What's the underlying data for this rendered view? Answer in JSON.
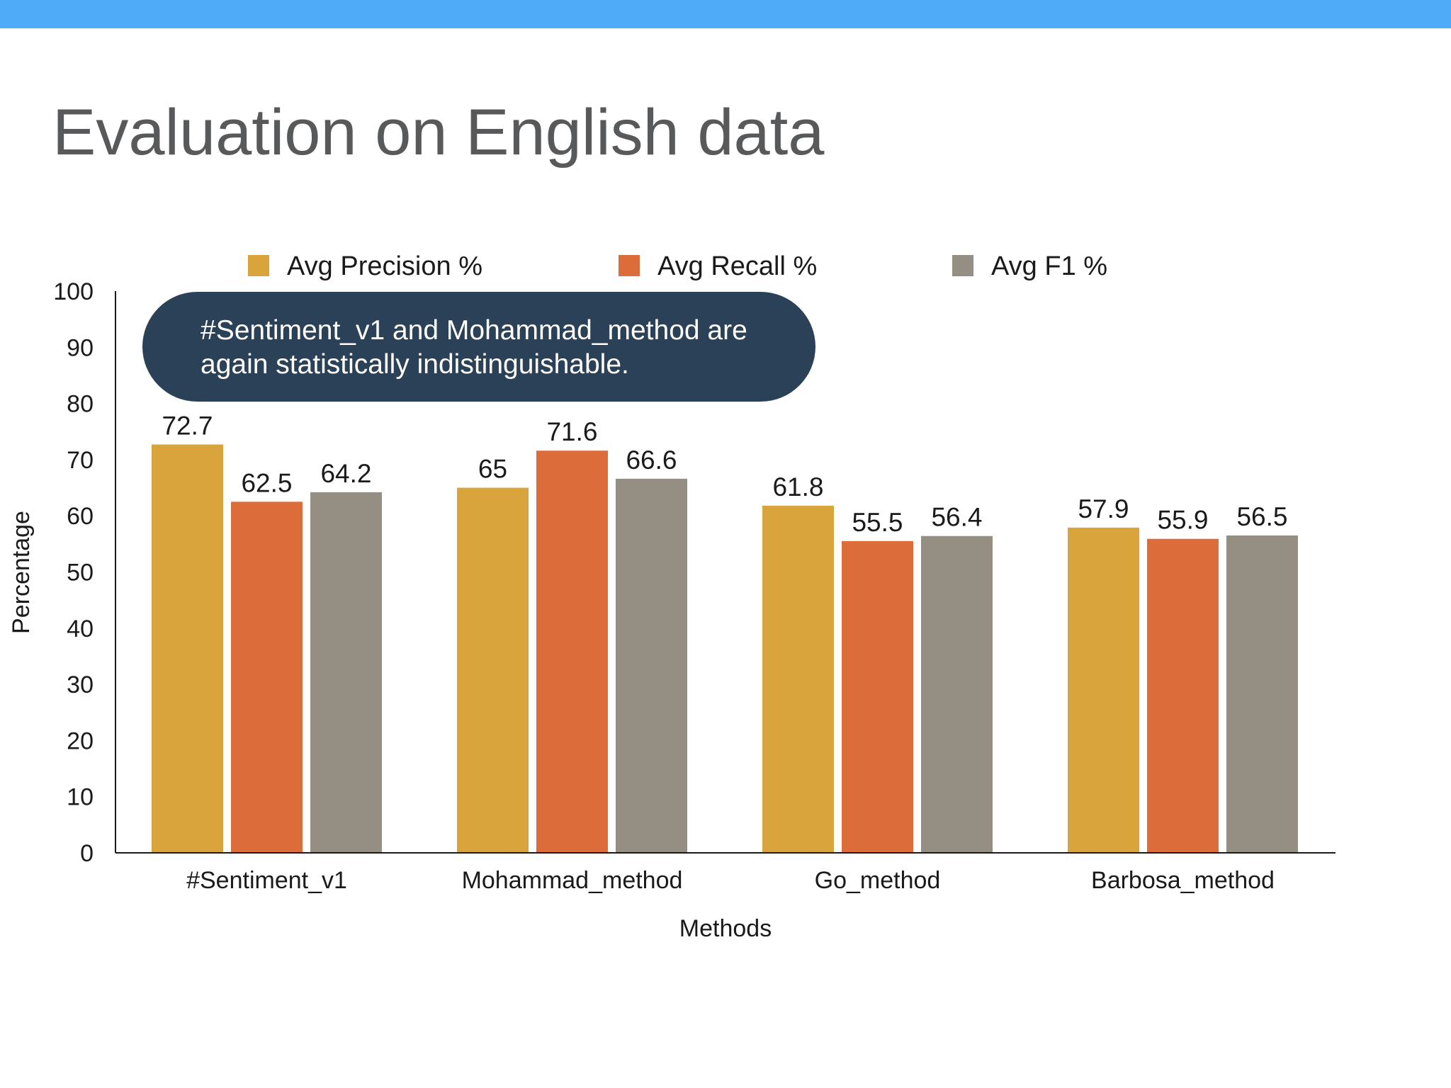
{
  "colors": {
    "top_bar": "#4faaf7",
    "title": "#58595b",
    "callout_bg": "#2b4158",
    "axis": "#1a1a1a"
  },
  "slide": {
    "title": "Evaluation on English data"
  },
  "callout": {
    "text": "#Sentiment_v1 and Mohammad_method are\nagain statistically indistinguishable."
  },
  "chart_data": {
    "type": "bar",
    "title": "",
    "xlabel": "Methods",
    "ylabel": "Percentage",
    "ylim": [
      0,
      100
    ],
    "yticks": [
      0,
      10,
      20,
      30,
      40,
      50,
      60,
      70,
      80,
      90,
      100
    ],
    "grid": false,
    "legend_position": "top",
    "categories": [
      "#Sentiment_v1",
      "Mohammad_method",
      "Go_method",
      "Barbosa_method"
    ],
    "series": [
      {
        "name": "Avg Precision %",
        "color": "#d9a43c",
        "values": [
          72.7,
          65,
          61.8,
          57.9
        ]
      },
      {
        "name": "Avg Recall %",
        "color": "#dc6c39",
        "values": [
          62.5,
          71.6,
          55.5,
          55.9
        ]
      },
      {
        "name": "Avg F1 %",
        "color": "#958e83",
        "values": [
          64.2,
          66.6,
          56.4,
          56.5
        ]
      }
    ]
  }
}
